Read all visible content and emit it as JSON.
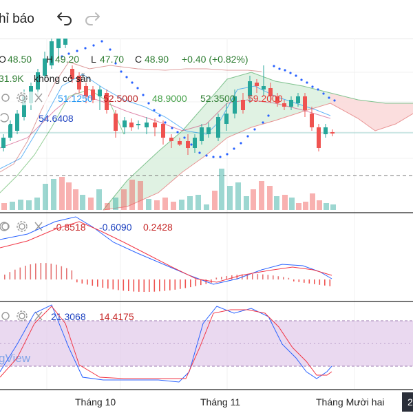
{
  "toolbar": {
    "title": "hỉ báo",
    "undo_icon": "undo-arrow-icon",
    "redo_icon": "redo-arrow-icon"
  },
  "legend": {
    "ohlc": {
      "o_label": "O",
      "o_value": "48.50",
      "h_label": "H",
      "h_value": "49.20",
      "l_label": "L",
      "l_value": "47.70",
      "c_label": "C",
      "c_value": "48.90",
      "change": "+0.40 (+0.82%)"
    },
    "volume_line": {
      "value": "31.9K",
      "note": "không có sẵn"
    },
    "indicator_values": [
      "51.1250",
      "52.5000",
      "48.9000",
      "52.3500",
      "59.2000"
    ],
    "indicator_second_row": "54.6408"
  },
  "macd": {
    "values": [
      "-0.8518",
      "-0.6090",
      "0.2428"
    ]
  },
  "stoch": {
    "values": [
      "21.3068",
      "14.4175"
    ],
    "watermark": "gView"
  },
  "time_axis": {
    "labels": [
      "Tháng 10",
      "Tháng 11",
      "Tháng Mười hai"
    ],
    "corner_label": "2"
  },
  "colors": {
    "up": "#26a69a",
    "down": "#ef5350",
    "blue": "#2962ff",
    "red_line": "#f23645",
    "cloud_green": "#d8efdc",
    "cloud_red": "#fbdada",
    "stoch_band": "#e1c9ea",
    "text_green": "#2e7d32"
  }
}
